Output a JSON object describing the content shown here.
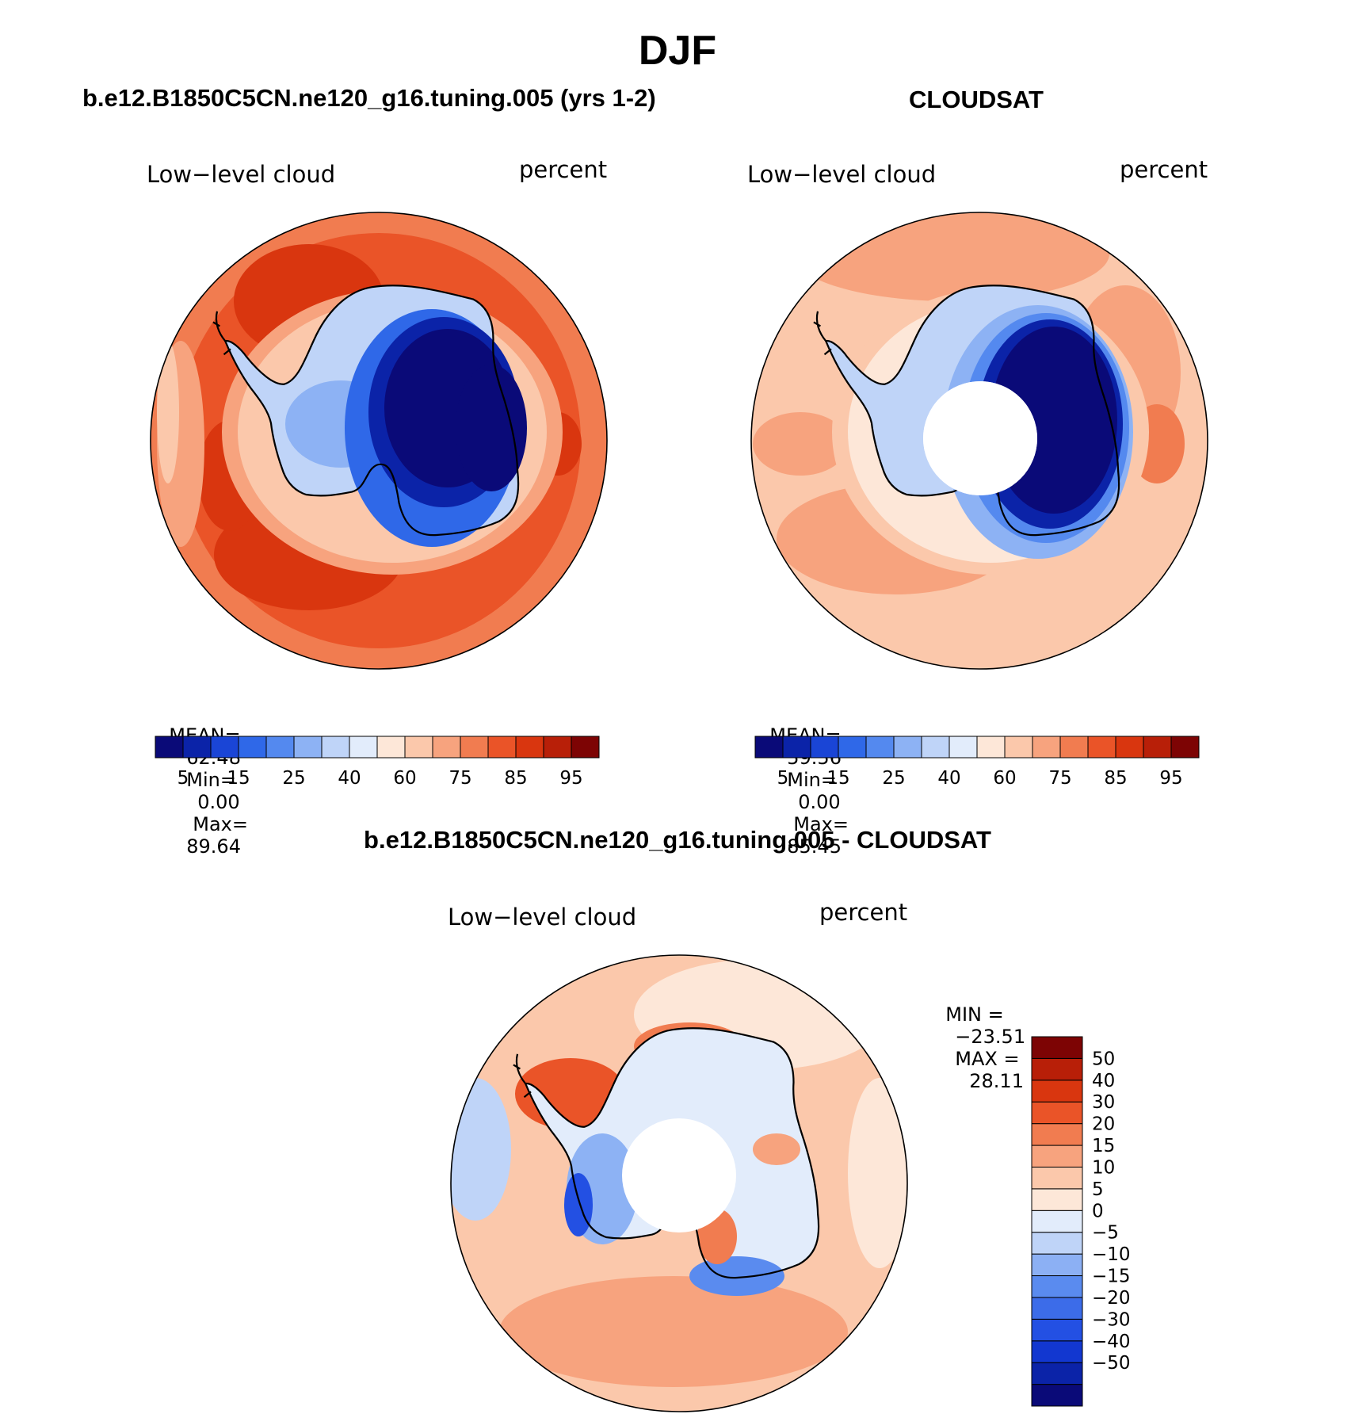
{
  "title": "DJF",
  "panels": [
    {
      "heading": "b.e12.B1850C5CN.ne120_g16.tuning.005 (yrs 1-2)",
      "variable": "Low−level cloud",
      "units": "percent",
      "stats": {
        "mean_label": "MEAN=",
        "mean": "62.48",
        "min_label": "Min=",
        "min": "0.00",
        "max_label": "Max=",
        "max": "89.64"
      }
    },
    {
      "heading": "CLOUDSAT",
      "variable": "Low−level cloud",
      "units": "percent",
      "stats": {
        "mean_label": "MEAN=",
        "mean": "59.56",
        "min_label": "Min=",
        "min": "0.00",
        "max_label": "Max=",
        "max": "85.45"
      }
    },
    {
      "heading": "b.e12.B1850C5CN.ne120_g16.tuning.005 - CLOUDSAT",
      "variable": "Low−level cloud",
      "units": "percent",
      "stats": {
        "min_label": "MIN =",
        "min": "−23.51",
        "max_label": "MAX =",
        "max": "28.11"
      }
    }
  ],
  "colorbar_abs": {
    "colors": [
      "#0a0a78",
      "#0b23a8",
      "#1a45d6",
      "#2f68e8",
      "#5489ef",
      "#8db2f4",
      "#bfd4f8",
      "#e2ecfb",
      "#fde7d8",
      "#fbc8ab",
      "#f7a37e",
      "#f17c50",
      "#ea5428",
      "#d9360f",
      "#b81f08",
      "#7d0404"
    ],
    "ticks": [
      "5",
      "15",
      "25",
      "40",
      "60",
      "75",
      "85",
      "95"
    ]
  },
  "colorbar_diff": {
    "colors": [
      "#0a0a78",
      "#0b23a8",
      "#1237d0",
      "#2350e3",
      "#3c6ce9",
      "#5a8bef",
      "#8cb0f4",
      "#bfd4f8",
      "#e2ecfb",
      "#fde7d8",
      "#fbc8ab",
      "#f7a37e",
      "#f17c50",
      "#ea5428",
      "#d9360f",
      "#b81f08",
      "#7d0404"
    ],
    "ticks": [
      "50",
      "40",
      "30",
      "20",
      "15",
      "10",
      "5",
      "0",
      "−5",
      "−10",
      "−15",
      "−20",
      "−30",
      "−40",
      "−50"
    ]
  }
}
